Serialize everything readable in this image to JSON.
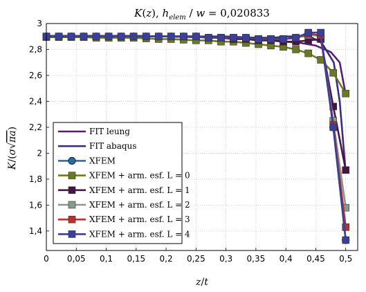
{
  "chart_data": {
    "type": "line",
    "title": "K(z), h_elem / w = 0,020833",
    "xlabel": "z/t",
    "ylabel": "K/(σ√πa)",
    "xlim": [
      0,
      0.52
    ],
    "ylim": [
      1.25,
      3.0
    ],
    "x_ticks": [
      "0",
      "0,05",
      "0,1",
      "0,15",
      "0,2",
      "0,25",
      "0,3",
      "0,35",
      "0,4",
      "0,45",
      "0,5"
    ],
    "y_ticks": [
      "1,4",
      "1,6",
      "1,8",
      "2",
      "2,2",
      "2,4",
      "2,6",
      "2,8",
      "3"
    ],
    "grid": true,
    "legend_position": "bottom-left",
    "series": [
      {
        "name": "FIT leung",
        "color": "#5b1a6e",
        "marker": "none",
        "x": [
          0,
          0.05,
          0.1,
          0.15,
          0.2,
          0.25,
          0.3,
          0.35,
          0.4,
          0.425,
          0.45,
          0.475,
          0.49,
          0.5
        ],
        "y": [
          2.905,
          2.905,
          2.905,
          2.905,
          2.9,
          2.895,
          2.89,
          2.88,
          2.86,
          2.85,
          2.83,
          2.78,
          2.7,
          2.45
        ]
      },
      {
        "name": "FIT abaqus",
        "color": "#3b2a80",
        "marker": "none",
        "x": [
          0,
          0.05,
          0.1,
          0.15,
          0.2,
          0.25,
          0.3,
          0.35,
          0.38,
          0.4,
          0.42,
          0.44,
          0.46,
          0.48,
          0.49,
          0.5
        ],
        "y": [
          2.9,
          2.9,
          2.9,
          2.9,
          2.9,
          2.9,
          2.9,
          2.89,
          2.89,
          2.9,
          2.9,
          2.9,
          2.85,
          2.7,
          2.4,
          1.85
        ]
      },
      {
        "name": "XFEM",
        "color": "#2e7090",
        "marker": "circle",
        "x": [
          0,
          0.0208,
          0.0417,
          0.0625,
          0.0833,
          0.1042,
          0.125,
          0.1458,
          0.1667,
          0.1875,
          0.2083,
          0.2292,
          0.25,
          0.2708,
          0.2917,
          0.3125,
          0.3333,
          0.3542,
          0.375,
          0.3958,
          0.4167,
          0.4375,
          0.4583,
          0.4792,
          0.5
        ],
        "y": [
          2.9,
          2.9,
          2.9,
          2.9,
          2.9,
          2.9,
          2.9,
          2.9,
          2.9,
          2.9,
          2.9,
          2.9,
          2.9,
          2.89,
          2.89,
          2.89,
          2.89,
          2.88,
          2.88,
          2.88,
          2.89,
          2.92,
          2.9,
          2.2,
          1.33
        ]
      },
      {
        "name": "XFEM + arm. esf. L = 0",
        "color": "#6b7a1e",
        "marker": "square",
        "x": [
          0,
          0.0208,
          0.0417,
          0.0625,
          0.0833,
          0.1042,
          0.125,
          0.1458,
          0.1667,
          0.1875,
          0.2083,
          0.2292,
          0.25,
          0.2708,
          0.2917,
          0.3125,
          0.3333,
          0.3542,
          0.375,
          0.3958,
          0.4167,
          0.4375,
          0.4583,
          0.4792,
          0.5
        ],
        "y": [
          2.895,
          2.895,
          2.895,
          2.895,
          2.89,
          2.89,
          2.89,
          2.89,
          2.885,
          2.88,
          2.88,
          2.875,
          2.87,
          2.87,
          2.86,
          2.86,
          2.85,
          2.84,
          2.83,
          2.82,
          2.8,
          2.77,
          2.72,
          2.62,
          2.46
        ]
      },
      {
        "name": "XFEM + arm. esf. L = 1",
        "color": "#4a1245",
        "marker": "square",
        "x": [
          0,
          0.0208,
          0.0417,
          0.0625,
          0.0833,
          0.1042,
          0.125,
          0.1458,
          0.1667,
          0.1875,
          0.2083,
          0.2292,
          0.25,
          0.2708,
          0.2917,
          0.3125,
          0.3333,
          0.3542,
          0.375,
          0.3958,
          0.4167,
          0.4375,
          0.4583,
          0.4792,
          0.5
        ],
        "y": [
          2.9,
          2.9,
          2.9,
          2.9,
          2.9,
          2.9,
          2.9,
          2.9,
          2.9,
          2.9,
          2.9,
          2.9,
          2.9,
          2.89,
          2.89,
          2.88,
          2.88,
          2.87,
          2.87,
          2.86,
          2.86,
          2.87,
          2.88,
          2.36,
          1.87
        ]
      },
      {
        "name": "XFEM + arm. esf. L = 2",
        "color": "#8a9a88",
        "marker": "square",
        "x": [
          0,
          0.0208,
          0.0417,
          0.0625,
          0.0833,
          0.1042,
          0.125,
          0.1458,
          0.1667,
          0.1875,
          0.2083,
          0.2292,
          0.25,
          0.2708,
          0.2917,
          0.3125,
          0.3333,
          0.3542,
          0.375,
          0.3958,
          0.4167,
          0.4375,
          0.4583,
          0.4792,
          0.5
        ],
        "y": [
          2.9,
          2.9,
          2.9,
          2.9,
          2.9,
          2.9,
          2.9,
          2.9,
          2.9,
          2.9,
          2.9,
          2.9,
          2.9,
          2.89,
          2.89,
          2.89,
          2.89,
          2.88,
          2.88,
          2.88,
          2.89,
          2.91,
          2.91,
          2.25,
          1.58
        ]
      },
      {
        "name": "XFEM + arm. esf. L = 3",
        "color": "#b83030",
        "marker": "square",
        "x": [
          0,
          0.0208,
          0.0417,
          0.0625,
          0.0833,
          0.1042,
          0.125,
          0.1458,
          0.1667,
          0.1875,
          0.2083,
          0.2292,
          0.25,
          0.2708,
          0.2917,
          0.3125,
          0.3333,
          0.3542,
          0.375,
          0.3958,
          0.4167,
          0.4375,
          0.4583,
          0.4792,
          0.5
        ],
        "y": [
          2.9,
          2.9,
          2.9,
          2.9,
          2.9,
          2.9,
          2.9,
          2.9,
          2.9,
          2.9,
          2.9,
          2.9,
          2.9,
          2.89,
          2.89,
          2.89,
          2.89,
          2.88,
          2.88,
          2.88,
          2.89,
          2.92,
          2.91,
          2.22,
          1.43
        ]
      },
      {
        "name": "XFEM + arm. esf. L = 4",
        "color": "#3a3f9a",
        "marker": "square",
        "x": [
          0,
          0.0208,
          0.0417,
          0.0625,
          0.0833,
          0.1042,
          0.125,
          0.1458,
          0.1667,
          0.1875,
          0.2083,
          0.2292,
          0.25,
          0.2708,
          0.2917,
          0.3125,
          0.3333,
          0.3542,
          0.375,
          0.3958,
          0.4167,
          0.4375,
          0.4583,
          0.4792,
          0.5
        ],
        "y": [
          2.9,
          2.9,
          2.9,
          2.9,
          2.9,
          2.9,
          2.9,
          2.9,
          2.9,
          2.9,
          2.9,
          2.9,
          2.9,
          2.89,
          2.89,
          2.89,
          2.89,
          2.88,
          2.88,
          2.88,
          2.89,
          2.93,
          2.93,
          2.2,
          1.33
        ]
      }
    ]
  }
}
